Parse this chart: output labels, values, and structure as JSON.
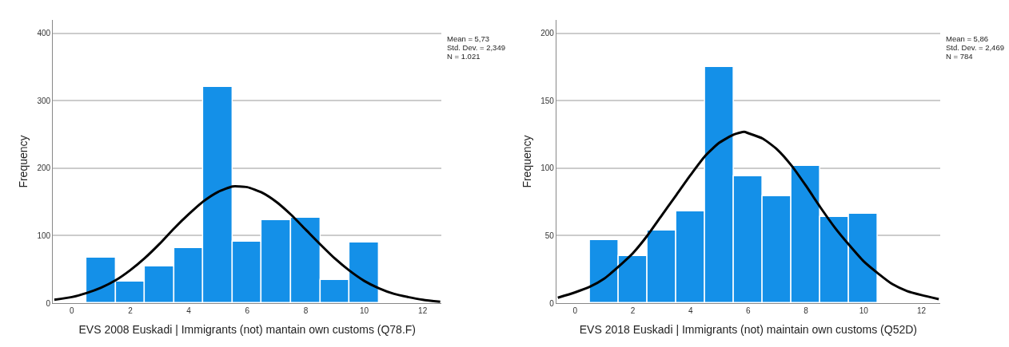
{
  "chart_data": [
    {
      "type": "histogram",
      "xlabel": "EVS 2008 Euskadi | Immigrants (not) mantain own customs (Q78.F)",
      "ylabel": "Frequency",
      "bins": [
        0.5,
        1.5,
        2.5,
        3.5,
        4.5,
        5.5,
        6.5,
        7.5,
        8.5,
        9.5,
        10.5
      ],
      "values": [
        67,
        32,
        54,
        82,
        321,
        91,
        123,
        127,
        34,
        90
      ],
      "color": "#1490e8",
      "series": [
        {
          "type": "line",
          "color": "#000000",
          "x": [
            -0.6,
            0,
            0.5,
            1,
            1.5,
            2,
            2.5,
            3,
            3.5,
            4,
            4.5,
            5,
            5.5,
            5.73,
            6,
            6.5,
            7,
            7.5,
            8,
            8.5,
            9,
            9.5,
            10,
            10.5,
            11,
            11.5,
            12,
            12.6
          ],
          "values": [
            5,
            9,
            15,
            23,
            34,
            49,
            67,
            88,
            111,
            132,
            151,
            165,
            173,
            173,
            172,
            164,
            150,
            131,
            109,
            87,
            66,
            48,
            33,
            22,
            14,
            9,
            5,
            2
          ]
        }
      ],
      "xlim": [
        -0.65,
        12.65
      ],
      "xticks": [
        0,
        2,
        4,
        6,
        8,
        10,
        12
      ],
      "ylim": [
        0,
        420
      ],
      "yticks": [
        0,
        100,
        200,
        300,
        400
      ],
      "grid": "y",
      "annotations": [
        "Mean = 5,73",
        "Std. Dev. = 2,349",
        "N = 1.021"
      ]
    },
    {
      "type": "histogram",
      "xlabel": "EVS 2018 Euskadi | Immigrants (not) maintain own customs (Q52D)",
      "ylabel": "Frequency",
      "bins": [
        0.5,
        1.5,
        2.5,
        3.5,
        4.5,
        5.5,
        6.5,
        7.5,
        8.5,
        9.5,
        10.5
      ],
      "values": [
        47,
        35,
        54,
        68,
        175,
        94,
        79,
        102,
        64,
        66
      ],
      "color": "#1490e8",
      "series": [
        {
          "type": "line",
          "color": "#000000",
          "x": [
            -0.6,
            0,
            0.5,
            1,
            1.5,
            2,
            2.5,
            3,
            3.5,
            4,
            4.5,
            5,
            5.5,
            5.86,
            6,
            6.5,
            7,
            7.5,
            8,
            8.5,
            9,
            9.5,
            10,
            10.5,
            11,
            11.5,
            12,
            12.6
          ],
          "values": [
            4,
            8,
            12,
            18,
            27,
            37,
            50,
            65,
            80,
            95,
            109,
            119,
            125,
            127,
            126,
            122,
            114,
            102,
            87,
            71,
            56,
            43,
            31,
            22,
            14,
            9,
            6,
            3
          ]
        }
      ],
      "xlim": [
        -0.65,
        12.65
      ],
      "xticks": [
        0,
        2,
        4,
        6,
        8,
        10,
        12
      ],
      "ylim": [
        0,
        210
      ],
      "yticks": [
        0,
        50,
        100,
        150,
        200
      ],
      "grid": "y",
      "annotations": [
        "Mean = 5,86",
        "Std. Dev. = 2,469",
        "N = 784"
      ]
    }
  ]
}
